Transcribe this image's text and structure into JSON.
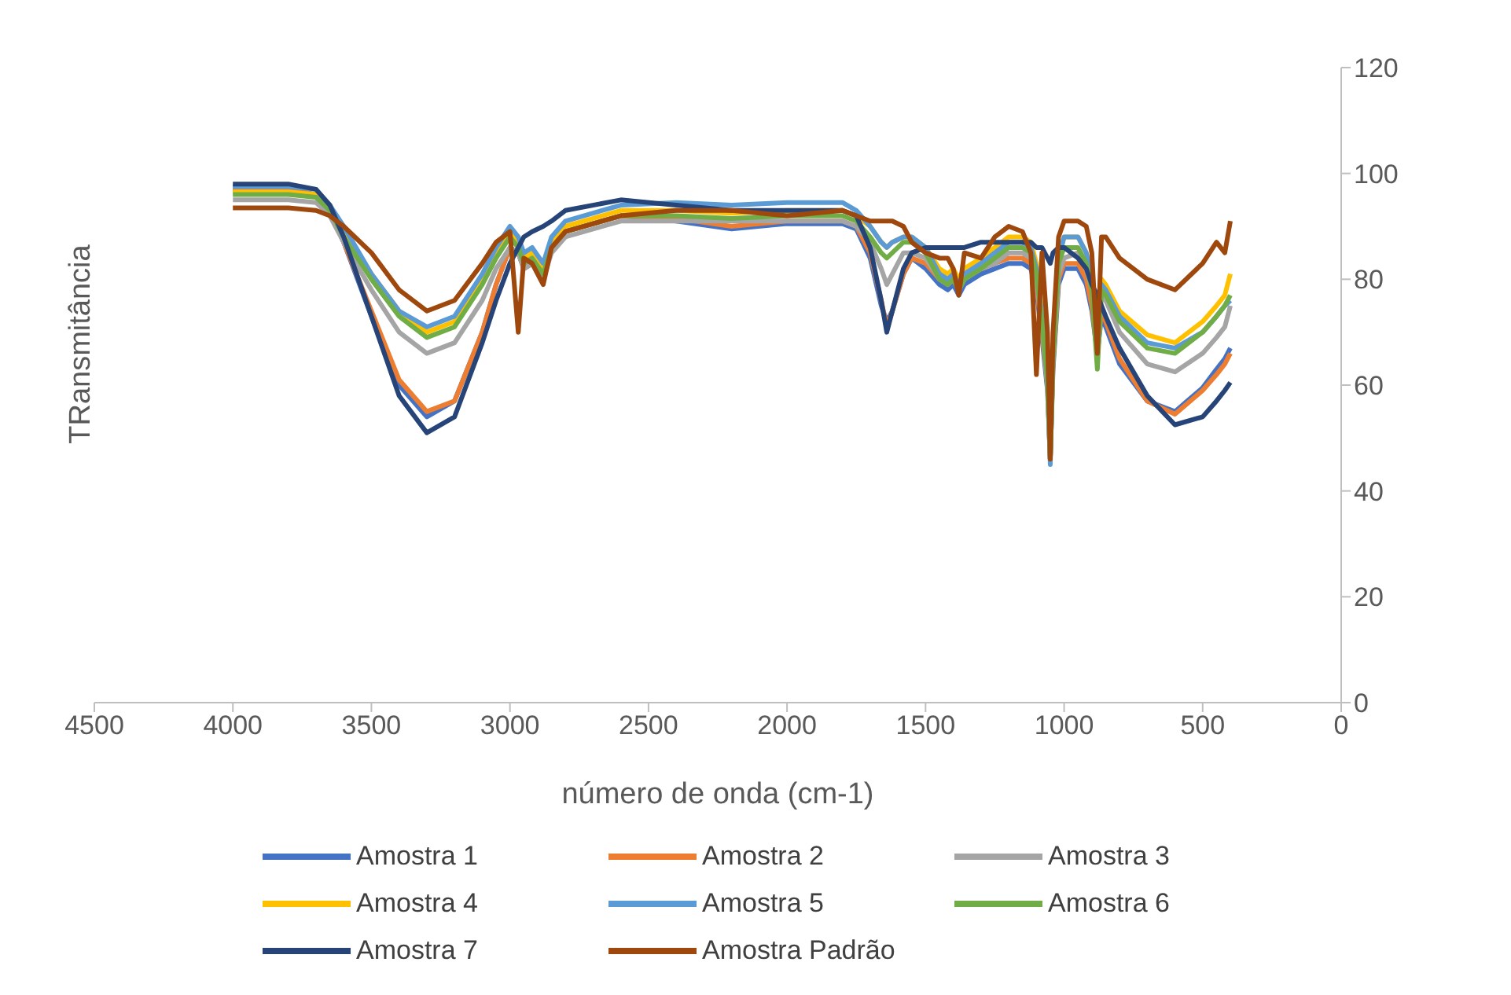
{
  "chart_data": {
    "type": "line",
    "xlabel": "número de onda (cm-1)",
    "ylabel": "TRansmitância",
    "xlim": [
      4500,
      0
    ],
    "xticks": [
      4500,
      4000,
      3500,
      3000,
      2500,
      2000,
      1500,
      1000,
      500,
      0
    ],
    "ylim": [
      0,
      120
    ],
    "yticks": [
      0,
      20,
      40,
      60,
      80,
      100,
      120
    ],
    "grid": false,
    "legend": "bottom",
    "marker": "none",
    "line_style": "solid",
    "x": [
      4000,
      3800,
      3700,
      3650,
      3600,
      3500,
      3400,
      3300,
      3200,
      3100,
      3050,
      3000,
      2970,
      2950,
      2920,
      2880,
      2850,
      2800,
      2600,
      2400,
      2200,
      2000,
      1800,
      1750,
      1700,
      1660,
      1640,
      1620,
      1580,
      1550,
      1500,
      1450,
      1420,
      1400,
      1380,
      1360,
      1300,
      1250,
      1200,
      1150,
      1120,
      1100,
      1080,
      1060,
      1050,
      1040,
      1020,
      1000,
      950,
      920,
      900,
      880,
      865,
      850,
      800,
      700,
      600,
      500,
      450,
      420,
      400
    ],
    "series": [
      {
        "name": "Amostra 1",
        "color": "#4472c4",
        "values": [
          97,
          97,
          96,
          93,
          87,
          73,
          60,
          54,
          57,
          70,
          79,
          86,
          85,
          82,
          83,
          81,
          86,
          89,
          92,
          91,
          89.5,
          90.5,
          90.5,
          89.5,
          84,
          75,
          72,
          74,
          81,
          84,
          82,
          79,
          78,
          79,
          77,
          79,
          81,
          82,
          83,
          83,
          82,
          78,
          69,
          59,
          46,
          63,
          79,
          82,
          82,
          79,
          74,
          66,
          73,
          71,
          64,
          57,
          55,
          59.5,
          63,
          65,
          67
        ]
      },
      {
        "name": "Amostra 2",
        "color": "#ed7d31",
        "values": [
          97,
          97,
          96,
          93,
          87,
          74,
          61,
          55,
          57,
          70,
          79,
          86,
          85,
          82,
          83,
          81,
          86,
          89,
          92,
          91.5,
          90,
          91,
          91,
          90,
          85,
          76,
          71,
          74,
          81,
          84,
          83,
          80,
          79,
          80,
          78,
          80,
          82,
          83,
          84,
          84,
          83,
          79,
          70,
          60,
          46,
          64,
          80,
          83,
          83,
          80,
          75,
          66,
          74,
          72,
          65,
          57,
          54.5,
          59,
          62,
          64,
          66
        ]
      },
      {
        "name": "Amostra 3",
        "color": "#a5a5a5",
        "values": [
          95,
          95,
          94.5,
          92,
          87,
          78,
          70,
          66,
          68,
          76,
          82,
          86,
          85,
          82,
          83,
          80,
          85,
          88,
          91,
          91,
          91,
          91,
          91,
          90,
          87,
          82,
          79,
          81,
          85,
          85,
          84,
          80,
          79,
          80,
          78,
          80,
          82,
          83,
          85,
          85,
          84,
          80,
          71,
          60,
          46,
          65,
          81,
          84,
          85,
          82,
          78,
          66,
          77,
          76,
          70,
          64,
          62.5,
          66,
          69,
          71,
          75
        ]
      },
      {
        "name": "Amostra 4",
        "color": "#ffc000",
        "values": [
          96.5,
          96.5,
          96,
          93.5,
          89,
          81,
          74,
          70,
          72,
          80,
          85,
          89,
          87,
          84,
          85,
          82,
          87,
          90,
          93,
          93,
          92.5,
          93,
          93,
          92,
          90,
          87,
          86,
          87,
          88,
          88,
          86,
          82,
          81,
          82,
          80,
          82,
          84,
          86,
          88,
          88,
          87,
          83,
          74,
          62,
          46,
          67,
          84,
          88,
          88,
          85,
          80,
          66,
          80,
          79,
          74,
          69.5,
          68,
          72,
          75,
          77,
          81
        ]
      },
      {
        "name": "Amostra 5",
        "color": "#5b9bd5",
        "values": [
          97.5,
          97.5,
          97,
          94,
          90,
          81,
          74,
          71,
          73,
          81,
          86,
          90,
          88,
          85,
          86,
          83,
          88,
          91,
          94,
          94.5,
          94,
          94.5,
          94.5,
          93,
          90,
          87,
          86,
          87,
          88,
          88,
          86,
          81,
          80,
          81,
          79,
          81,
          83,
          85,
          87,
          87,
          86,
          82,
          73,
          61,
          45,
          66,
          84,
          88,
          88,
          85,
          80,
          66,
          79,
          78,
          73,
          68,
          67,
          70,
          73,
          75,
          76
        ]
      },
      {
        "name": "Amostra 6",
        "color": "#70ad47",
        "values": [
          96,
          96,
          95.5,
          93,
          88,
          80,
          73,
          69,
          71,
          79,
          84,
          88,
          86,
          83,
          84,
          81,
          86,
          89,
          92,
          92,
          91.5,
          92,
          92,
          91,
          88,
          85,
          84,
          85,
          87,
          87,
          85,
          80,
          79,
          80,
          78,
          80,
          82,
          84,
          86,
          86,
          85,
          81,
          72,
          61,
          46,
          65,
          83,
          86,
          86,
          83,
          78,
          63,
          78,
          77,
          72,
          67,
          66,
          70,
          73,
          75,
          77
        ]
      },
      {
        "name": "Amostra 7",
        "color": "#264478",
        "values": [
          98,
          98,
          97,
          94,
          88,
          73,
          58,
          51,
          54,
          68,
          76,
          83,
          86,
          88,
          89,
          90,
          91,
          93,
          95,
          94,
          93,
          93,
          93,
          92,
          86,
          76,
          70,
          74,
          82,
          85,
          86,
          86,
          86,
          86,
          86,
          86,
          87,
          87,
          87,
          87,
          87,
          86,
          86,
          84,
          83,
          85,
          86,
          86,
          84,
          82,
          79,
          77,
          75,
          73,
          67,
          58,
          52.5,
          54,
          57,
          59,
          60.5
        ]
      },
      {
        "name": "Amostra Padrão",
        "color": "#9e480e",
        "values": [
          93.5,
          93.5,
          93,
          92,
          90,
          85,
          78,
          74,
          76,
          83,
          87,
          89,
          70,
          84,
          83,
          79,
          86,
          89,
          92,
          93,
          93,
          92,
          93,
          92,
          91,
          91,
          91,
          91,
          90,
          87,
          85,
          84,
          84,
          82,
          77,
          85,
          84,
          88,
          90,
          89,
          85,
          62,
          85,
          70,
          46,
          70,
          88,
          91,
          91,
          90,
          85,
          66,
          88,
          88,
          84,
          80,
          78,
          83,
          87,
          85,
          91
        ]
      }
    ]
  }
}
